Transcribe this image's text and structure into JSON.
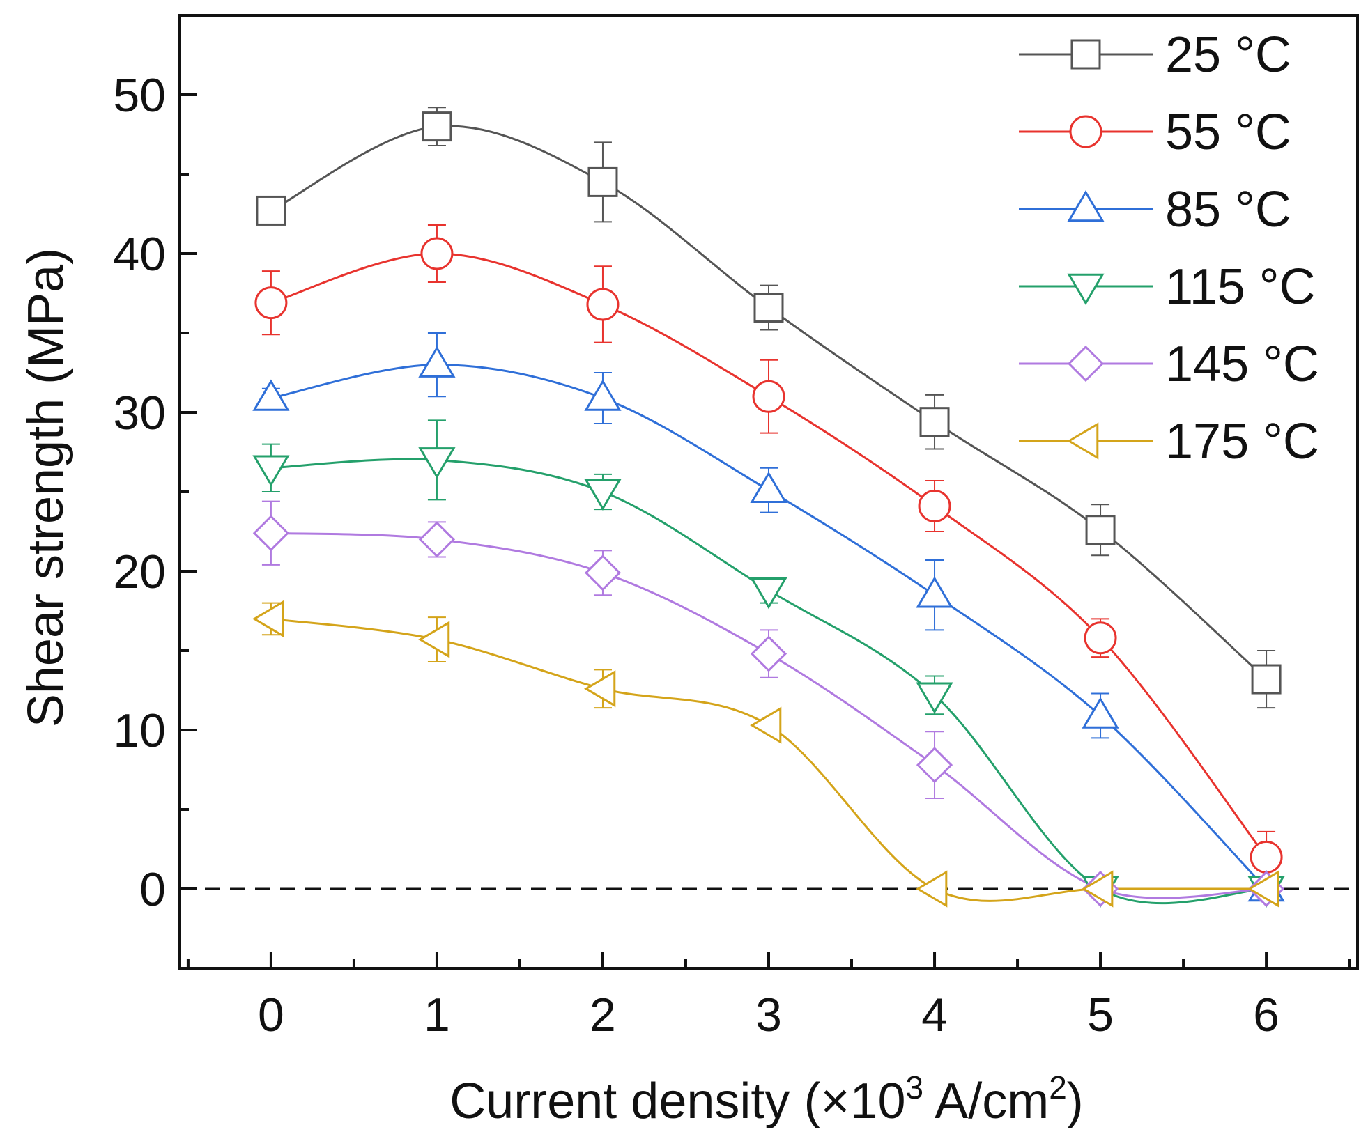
{
  "chart_data": {
    "type": "line",
    "xlabel": "Current density (×10",
    "xlabel_sup": "3",
    "xlabel_mid": " A/cm",
    "xlabel_sup2": "2",
    "xlabel_end": ")",
    "ylabel": "Shear strength (MPa)",
    "xlim": [
      -0.55,
      6.55
    ],
    "ylim": [
      -5,
      55
    ],
    "xticks": [
      0,
      1,
      2,
      3,
      4,
      5,
      6
    ],
    "yticks": [
      0,
      10,
      20,
      30,
      40,
      50
    ],
    "x": [
      0,
      1,
      2,
      3,
      4,
      5,
      6
    ],
    "reference_line": {
      "y": 0,
      "style": "dashed"
    },
    "legend_position": "top-right",
    "grid": false,
    "series": [
      {
        "name": "25 °C",
        "marker": "square",
        "color": "#555555",
        "values": [
          42.7,
          48.0,
          44.5,
          36.6,
          29.4,
          22.6,
          13.2
        ],
        "errors": [
          0.8,
          1.2,
          2.5,
          1.4,
          1.7,
          1.6,
          1.8
        ]
      },
      {
        "name": "55 °C",
        "marker": "circle",
        "color": "#e8332e",
        "values": [
          36.9,
          40.0,
          36.8,
          31.0,
          24.1,
          15.8,
          2.0
        ],
        "errors": [
          2.0,
          1.8,
          2.4,
          2.3,
          1.6,
          1.2,
          1.6
        ]
      },
      {
        "name": "85 °C",
        "marker": "triangle-up",
        "color": "#2f6fd8",
        "values": [
          30.9,
          33.0,
          30.9,
          25.1,
          18.5,
          10.9,
          0.0
        ],
        "errors": [
          0.6,
          2.0,
          1.6,
          1.4,
          2.2,
          1.4,
          0.4
        ]
      },
      {
        "name": "115 °C",
        "marker": "triangle-down",
        "color": "#24a06b",
        "values": [
          26.5,
          27.0,
          25.0,
          18.8,
          12.2,
          0.0,
          0.0
        ],
        "errors": [
          1.5,
          2.5,
          1.1,
          0.8,
          1.2,
          0.3,
          0.3
        ]
      },
      {
        "name": "145 °C",
        "marker": "diamond",
        "color": "#b07ae0",
        "values": [
          22.4,
          22.0,
          19.9,
          14.8,
          7.8,
          0.0,
          0.0
        ],
        "errors": [
          2.0,
          1.1,
          1.4,
          1.5,
          2.1,
          0.3,
          0.3
        ]
      },
      {
        "name": "175 °C",
        "marker": "triangle-left",
        "color": "#d4a41a",
        "values": [
          17.0,
          15.7,
          12.6,
          10.3,
          0.0,
          0.0,
          0.0
        ],
        "errors": [
          1.0,
          1.4,
          1.2,
          0.0,
          0.0,
          0.0,
          0.0
        ]
      }
    ]
  }
}
